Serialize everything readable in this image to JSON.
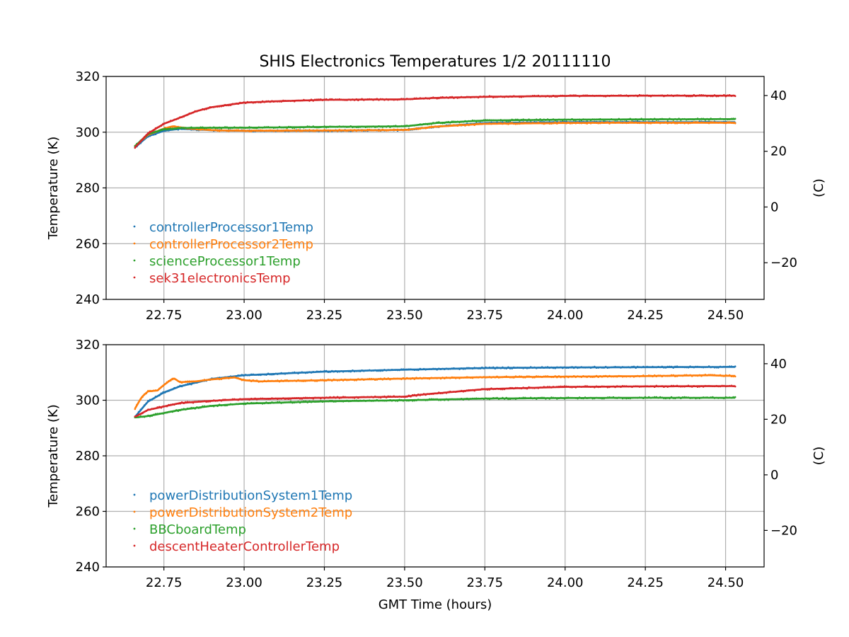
{
  "figure_title": "SHIS Electronics Temperatures 1/2 20111110",
  "xlabel": "GMT Time (hours)",
  "chart_data": [
    {
      "type": "scatter",
      "ylabel": "Temperature (K)",
      "y2label": "(C)",
      "xlim": [
        22.57,
        24.62
      ],
      "ylim": [
        240,
        320
      ],
      "y2lim": [
        -33.15,
        46.85
      ],
      "xticks": [
        "22.75",
        "23.00",
        "23.25",
        "23.50",
        "23.75",
        "24.00",
        "24.25",
        "24.50"
      ],
      "xtick_values": [
        22.75,
        23.0,
        23.25,
        23.5,
        23.75,
        24.0,
        24.25,
        24.5
      ],
      "yticks": [
        "240",
        "260",
        "280",
        "300",
        "320"
      ],
      "ytick_values": [
        240,
        260,
        280,
        300,
        320
      ],
      "y2ticks": [
        "−20",
        "0",
        "20",
        "40"
      ],
      "y2tick_values": [
        -20,
        0,
        20,
        40
      ],
      "grid": true,
      "legend_position": "lower-left",
      "series": [
        {
          "name": "controllerProcessor1Temp",
          "color": "#1f77b4",
          "x": [
            22.66,
            22.7,
            22.75,
            22.8,
            22.9,
            23.0,
            23.25,
            23.5,
            23.6,
            23.75,
            24.0,
            24.25,
            24.53
          ],
          "y": [
            294.5,
            298.5,
            300.5,
            301.2,
            300.7,
            300.5,
            300.5,
            300.8,
            302.0,
            303.3,
            303.6,
            303.6,
            303.6
          ]
        },
        {
          "name": "controllerProcessor2Temp",
          "color": "#ff7f0e",
          "x": [
            22.66,
            22.7,
            22.75,
            22.78,
            22.8,
            22.9,
            23.0,
            23.25,
            23.5,
            23.6,
            23.75,
            24.0,
            24.25,
            24.53
          ],
          "y": [
            295.0,
            299.0,
            301.3,
            302.2,
            301.6,
            300.7,
            300.5,
            300.6,
            300.8,
            302.0,
            303.0,
            303.3,
            303.4,
            303.4
          ]
        },
        {
          "name": "scienceProcessor1Temp",
          "color": "#2ca02c",
          "x": [
            22.66,
            22.7,
            22.75,
            22.8,
            22.9,
            23.0,
            23.25,
            23.5,
            23.6,
            23.75,
            24.0,
            24.25,
            24.53
          ],
          "y": [
            295.0,
            299.3,
            301.0,
            301.5,
            301.6,
            301.6,
            301.9,
            302.1,
            303.3,
            304.2,
            304.5,
            304.6,
            304.7
          ]
        },
        {
          "name": "sek31electronicsTemp",
          "color": "#d62728",
          "x": [
            22.66,
            22.7,
            22.75,
            22.8,
            22.85,
            22.9,
            23.0,
            23.1,
            23.25,
            23.5,
            23.6,
            23.75,
            24.0,
            24.25,
            24.53
          ],
          "y": [
            294.5,
            299.5,
            303.0,
            305.2,
            307.5,
            309.0,
            310.6,
            311.1,
            311.6,
            311.8,
            312.3,
            312.7,
            313.0,
            313.1,
            313.1
          ]
        }
      ]
    },
    {
      "type": "scatter",
      "ylabel": "Temperature (K)",
      "y2label": "(C)",
      "xlim": [
        22.57,
        24.62
      ],
      "ylim": [
        240,
        320
      ],
      "y2lim": [
        -33.15,
        46.85
      ],
      "xticks": [
        "22.75",
        "23.00",
        "23.25",
        "23.50",
        "23.75",
        "24.00",
        "24.25",
        "24.50"
      ],
      "xtick_values": [
        22.75,
        23.0,
        23.25,
        23.5,
        23.75,
        24.0,
        24.25,
        24.5
      ],
      "yticks": [
        "240",
        "260",
        "280",
        "300",
        "320"
      ],
      "ytick_values": [
        240,
        260,
        280,
        300,
        320
      ],
      "y2ticks": [
        "−20",
        "0",
        "20",
        "40"
      ],
      "y2tick_values": [
        -20,
        0,
        20,
        40
      ],
      "grid": true,
      "legend_position": "lower-left",
      "series": [
        {
          "name": "powerDistributionSystem1Temp",
          "color": "#1f77b4",
          "x": [
            22.66,
            22.7,
            22.75,
            22.8,
            22.9,
            23.0,
            23.25,
            23.5,
            23.75,
            24.0,
            24.25,
            24.53
          ],
          "y": [
            294.0,
            299.5,
            302.8,
            305.0,
            307.7,
            309.0,
            310.3,
            311.0,
            311.6,
            311.8,
            311.9,
            312.0
          ]
        },
        {
          "name": "powerDistributionSystem2Temp",
          "color": "#ff7f0e",
          "x": [
            22.66,
            22.68,
            22.7,
            22.73,
            22.75,
            22.78,
            22.8,
            22.85,
            22.9,
            22.97,
            23.0,
            23.05,
            23.25,
            23.5,
            23.75,
            24.0,
            24.25,
            24.45,
            24.5,
            24.53
          ],
          "y": [
            297.0,
            301.0,
            303.2,
            303.5,
            305.5,
            308.0,
            306.5,
            306.8,
            307.5,
            308.2,
            307.2,
            306.8,
            307.2,
            307.8,
            308.3,
            308.5,
            308.7,
            309.0,
            308.8,
            308.8
          ]
        },
        {
          "name": "BBCboardTemp",
          "color": "#2ca02c",
          "x": [
            22.66,
            22.7,
            22.8,
            22.9,
            23.0,
            23.25,
            23.5,
            23.75,
            24.0,
            24.25,
            24.53
          ],
          "y": [
            293.8,
            294.3,
            296.5,
            298.0,
            298.8,
            299.6,
            300.0,
            300.6,
            300.8,
            300.9,
            300.9
          ]
        },
        {
          "name": "descentHeaterControllerTemp",
          "color": "#d62728",
          "x": [
            22.66,
            22.7,
            22.8,
            22.9,
            23.0,
            23.25,
            23.5,
            23.55,
            23.75,
            24.0,
            24.25,
            24.53
          ],
          "y": [
            294.0,
            296.5,
            299.0,
            299.8,
            300.4,
            300.9,
            301.3,
            302.0,
            304.0,
            304.8,
            305.0,
            305.1
          ]
        }
      ]
    }
  ]
}
